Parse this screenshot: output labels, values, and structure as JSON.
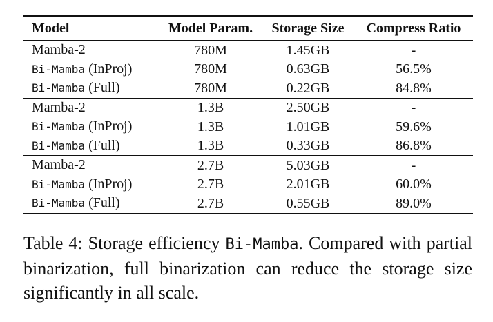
{
  "table": {
    "headers": [
      "Model",
      "Model Param.",
      "Storage Size",
      "Compress Ratio"
    ],
    "groups": [
      {
        "rows": [
          {
            "model": "Mamba-2",
            "model_mono": "",
            "model_suffix": "",
            "param": "780M",
            "storage": "1.45GB",
            "ratio": "-"
          },
          {
            "model": "",
            "model_mono": "Bi-Mamba",
            "model_suffix": " (InProj)",
            "param": "780M",
            "storage": "0.63GB",
            "ratio": "56.5%"
          },
          {
            "model": "",
            "model_mono": "Bi-Mamba",
            "model_suffix": " (Full)",
            "param": "780M",
            "storage": "0.22GB",
            "ratio": "84.8%"
          }
        ]
      },
      {
        "rows": [
          {
            "model": "Mamba-2",
            "model_mono": "",
            "model_suffix": "",
            "param": "1.3B",
            "storage": "2.50GB",
            "ratio": "-"
          },
          {
            "model": "",
            "model_mono": "Bi-Mamba",
            "model_suffix": " (InProj)",
            "param": "1.3B",
            "storage": "1.01GB",
            "ratio": "59.6%"
          },
          {
            "model": "",
            "model_mono": "Bi-Mamba",
            "model_suffix": " (Full)",
            "param": "1.3B",
            "storage": "0.33GB",
            "ratio": "86.8%"
          }
        ]
      },
      {
        "rows": [
          {
            "model": "Mamba-2",
            "model_mono": "",
            "model_suffix": "",
            "param": "2.7B",
            "storage": "5.03GB",
            "ratio": "-"
          },
          {
            "model": "",
            "model_mono": "Bi-Mamba",
            "model_suffix": " (InProj)",
            "param": "2.7B",
            "storage": "2.01GB",
            "ratio": "60.0%"
          },
          {
            "model": "",
            "model_mono": "Bi-Mamba",
            "model_suffix": " (Full)",
            "param": "2.7B",
            "storage": "0.55GB",
            "ratio": "89.0%"
          }
        ]
      }
    ]
  },
  "caption": {
    "label": "Table 4:",
    "text_before": " Storage efficiency ",
    "mono": "Bi-Mamba",
    "text_after": ". Compared with partial binarization, full binarization can reduce the storage size significantly in all scale."
  }
}
